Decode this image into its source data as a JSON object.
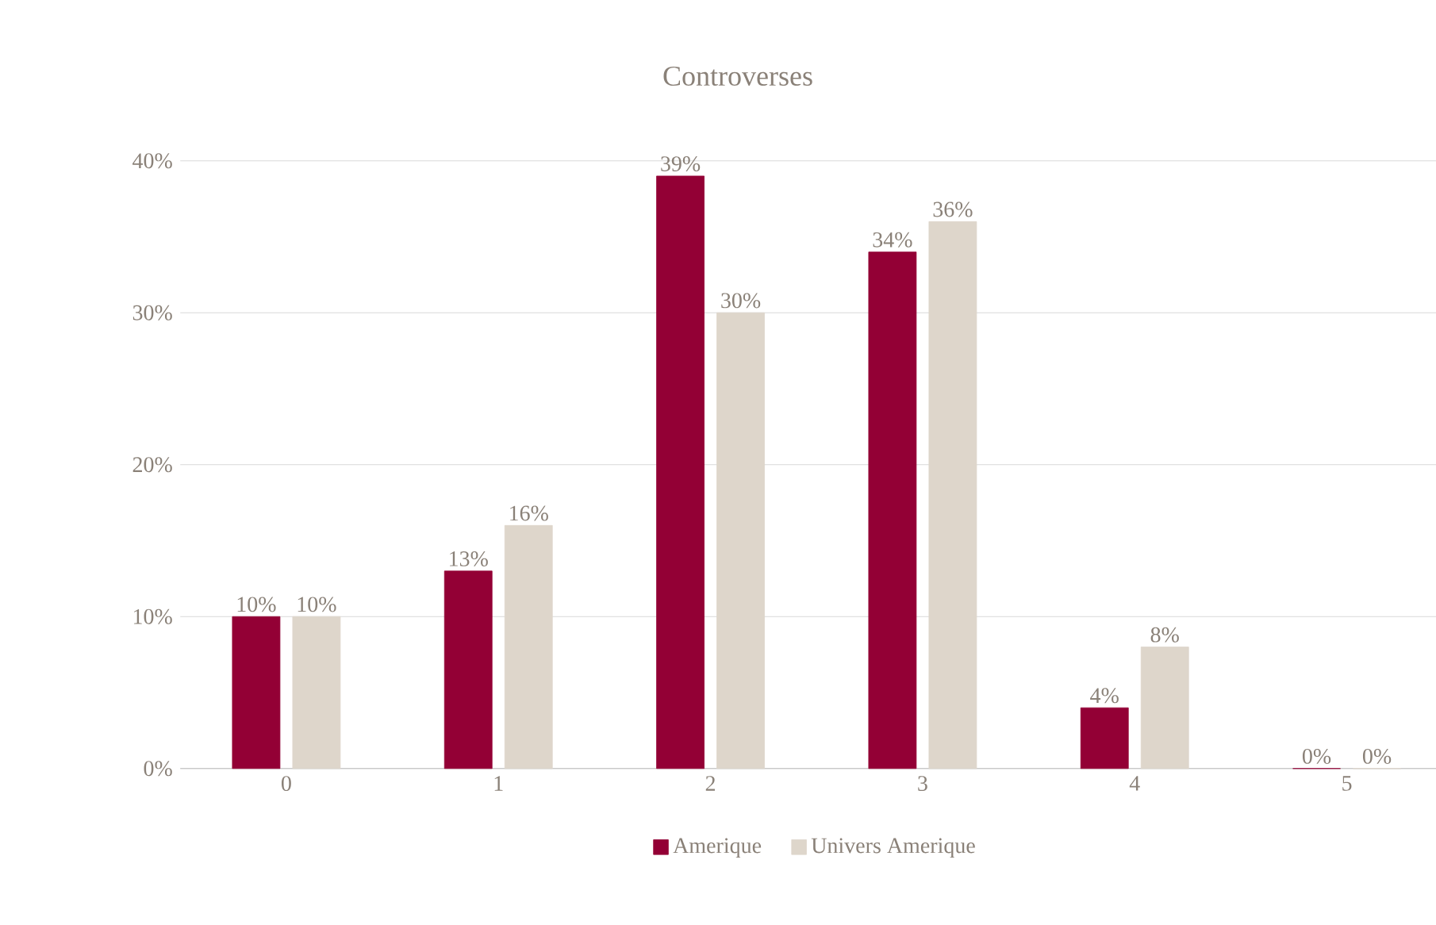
{
  "chart_data": {
    "type": "bar",
    "title": "Controverses",
    "categories": [
      "0",
      "1",
      "2",
      "3",
      "4",
      "5"
    ],
    "series": [
      {
        "name": "Amerique",
        "color": "#930035",
        "values": [
          10,
          13,
          39,
          34,
          4,
          0
        ],
        "value_labels": [
          "10%",
          "13%",
          "39%",
          "34%",
          "4%",
          "0%"
        ]
      },
      {
        "name": "Univers Amerique",
        "color": "#ded6cb",
        "values": [
          10,
          16,
          30,
          36,
          8,
          0
        ],
        "value_labels": [
          "10%",
          "16%",
          "30%",
          "36%",
          "8%",
          "0%"
        ]
      }
    ],
    "ylim": [
      0,
      40
    ],
    "yticks": [
      {
        "value": 0,
        "label": "0%"
      },
      {
        "value": 10,
        "label": "10%"
      },
      {
        "value": 20,
        "label": "20%"
      },
      {
        "value": 30,
        "label": "30%"
      },
      {
        "value": 40,
        "label": "40%"
      }
    ],
    "grid": "y",
    "legend": "bottom"
  }
}
